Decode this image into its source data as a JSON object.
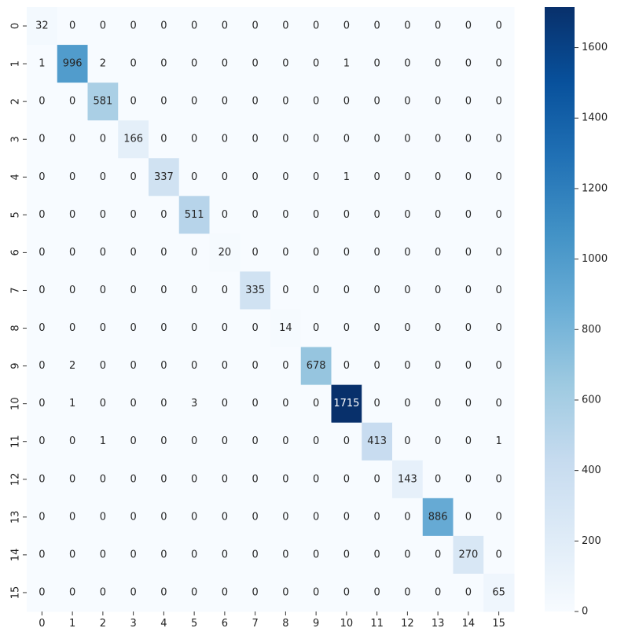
{
  "chart_data": {
    "type": "heatmap",
    "title": "",
    "xlabel": "",
    "ylabel": "",
    "x_labels": [
      "0",
      "1",
      "2",
      "3",
      "4",
      "5",
      "6",
      "7",
      "8",
      "9",
      "10",
      "11",
      "12",
      "13",
      "14",
      "15"
    ],
    "y_labels": [
      "0",
      "1",
      "2",
      "3",
      "4",
      "5",
      "6",
      "7",
      "8",
      "9",
      "10",
      "11",
      "12",
      "13",
      "14",
      "15"
    ],
    "matrix": [
      [
        32,
        0,
        0,
        0,
        0,
        0,
        0,
        0,
        0,
        0,
        0,
        0,
        0,
        0,
        0,
        0
      ],
      [
        1,
        996,
        2,
        0,
        0,
        0,
        0,
        0,
        0,
        0,
        1,
        0,
        0,
        0,
        0,
        0
      ],
      [
        0,
        0,
        581,
        0,
        0,
        0,
        0,
        0,
        0,
        0,
        0,
        0,
        0,
        0,
        0,
        0
      ],
      [
        0,
        0,
        0,
        166,
        0,
        0,
        0,
        0,
        0,
        0,
        0,
        0,
        0,
        0,
        0,
        0
      ],
      [
        0,
        0,
        0,
        0,
        337,
        0,
        0,
        0,
        0,
        0,
        1,
        0,
        0,
        0,
        0,
        0
      ],
      [
        0,
        0,
        0,
        0,
        0,
        511,
        0,
        0,
        0,
        0,
        0,
        0,
        0,
        0,
        0,
        0
      ],
      [
        0,
        0,
        0,
        0,
        0,
        0,
        20,
        0,
        0,
        0,
        0,
        0,
        0,
        0,
        0,
        0
      ],
      [
        0,
        0,
        0,
        0,
        0,
        0,
        0,
        335,
        0,
        0,
        0,
        0,
        0,
        0,
        0,
        0
      ],
      [
        0,
        0,
        0,
        0,
        0,
        0,
        0,
        0,
        14,
        0,
        0,
        0,
        0,
        0,
        0,
        0
      ],
      [
        0,
        2,
        0,
        0,
        0,
        0,
        0,
        0,
        0,
        678,
        0,
        0,
        0,
        0,
        0,
        0
      ],
      [
        0,
        1,
        0,
        0,
        0,
        3,
        0,
        0,
        0,
        0,
        1715,
        0,
        0,
        0,
        0,
        0
      ],
      [
        0,
        0,
        1,
        0,
        0,
        0,
        0,
        0,
        0,
        0,
        0,
        413,
        0,
        0,
        0,
        1
      ],
      [
        0,
        0,
        0,
        0,
        0,
        0,
        0,
        0,
        0,
        0,
        0,
        0,
        143,
        0,
        0,
        0
      ],
      [
        0,
        0,
        0,
        0,
        0,
        0,
        0,
        0,
        0,
        0,
        0,
        0,
        0,
        886,
        0,
        0
      ],
      [
        0,
        0,
        0,
        0,
        0,
        0,
        0,
        0,
        0,
        0,
        0,
        0,
        0,
        0,
        270,
        0
      ],
      [
        0,
        0,
        0,
        0,
        0,
        0,
        0,
        0,
        0,
        0,
        0,
        0,
        0,
        0,
        0,
        65
      ]
    ],
    "colorscale": "Blues",
    "vmin": 0,
    "vmax": 1715,
    "colorbar_ticks": [
      0,
      200,
      400,
      600,
      800,
      1000,
      1200,
      1400,
      1600
    ],
    "grid": false,
    "legend": "colorbar-right"
  }
}
